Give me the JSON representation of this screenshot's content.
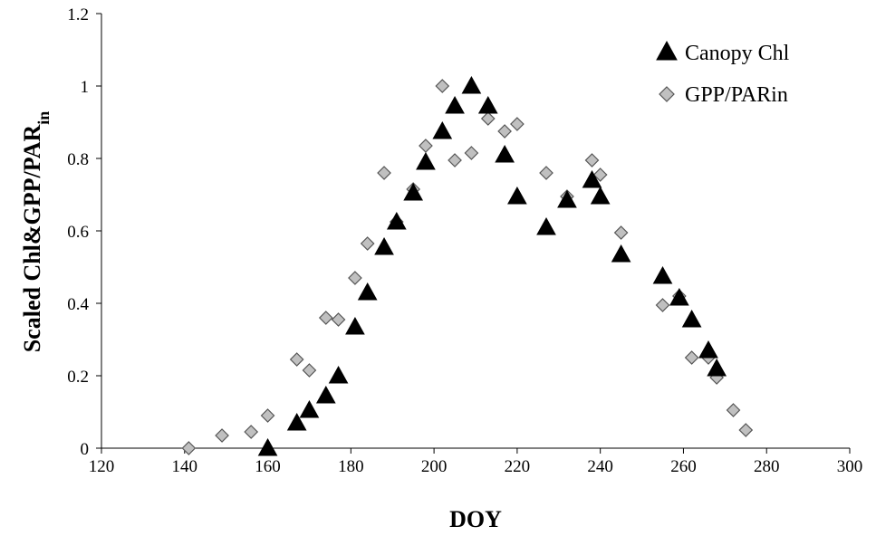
{
  "chart_data": {
    "type": "scatter",
    "title": "",
    "xlabel": "DOY",
    "ylabel": "Scaled Chl&GPP/PAR",
    "ylabel_sub": "in",
    "xlim": [
      120,
      300
    ],
    "ylim": [
      0,
      1.2
    ],
    "xticks": [
      "120",
      "140",
      "160",
      "180",
      "200",
      "220",
      "240",
      "260",
      "280",
      "300"
    ],
    "yticks": [
      "0",
      "0.2",
      "0.4",
      "0.6",
      "0.8",
      "1",
      "1.2"
    ],
    "grid": false,
    "legend_position": "top-right",
    "series": [
      {
        "name": "Canopy Chl",
        "marker": "triangle",
        "color": "#000000",
        "points": [
          [
            160,
            0.0
          ],
          [
            167,
            0.07
          ],
          [
            170,
            0.105
          ],
          [
            174,
            0.145
          ],
          [
            177,
            0.2
          ],
          [
            181,
            0.335
          ],
          [
            184,
            0.43
          ],
          [
            188,
            0.555
          ],
          [
            191,
            0.625
          ],
          [
            195,
            0.705
          ],
          [
            198,
            0.79
          ],
          [
            202,
            0.875
          ],
          [
            205,
            0.945
          ],
          [
            209,
            1.0
          ],
          [
            213,
            0.945
          ],
          [
            217,
            0.81
          ],
          [
            220,
            0.695
          ],
          [
            227,
            0.61
          ],
          [
            232,
            0.685
          ],
          [
            238,
            0.74
          ],
          [
            240,
            0.695
          ],
          [
            245,
            0.535
          ],
          [
            255,
            0.475
          ],
          [
            259,
            0.415
          ],
          [
            262,
            0.355
          ],
          [
            266,
            0.27
          ],
          [
            268,
            0.22
          ]
        ]
      },
      {
        "name": "GPP/PARin",
        "marker": "diamond",
        "color": "#c0c0c0",
        "points": [
          [
            141,
            0.0
          ],
          [
            149,
            0.035
          ],
          [
            156,
            0.045
          ],
          [
            160,
            0.09
          ],
          [
            167,
            0.245
          ],
          [
            170,
            0.215
          ],
          [
            174,
            0.36
          ],
          [
            177,
            0.355
          ],
          [
            181,
            0.47
          ],
          [
            184,
            0.565
          ],
          [
            188,
            0.76
          ],
          [
            191,
            0.625
          ],
          [
            195,
            0.715
          ],
          [
            198,
            0.835
          ],
          [
            202,
            1.0
          ],
          [
            205,
            0.795
          ],
          [
            209,
            0.815
          ],
          [
            213,
            0.91
          ],
          [
            217,
            0.875
          ],
          [
            220,
            0.895
          ],
          [
            227,
            0.76
          ],
          [
            232,
            0.695
          ],
          [
            238,
            0.795
          ],
          [
            240,
            0.755
          ],
          [
            245,
            0.595
          ],
          [
            255,
            0.395
          ],
          [
            259,
            0.42
          ],
          [
            262,
            0.25
          ],
          [
            266,
            0.25
          ],
          [
            268,
            0.195
          ],
          [
            272,
            0.105
          ],
          [
            275,
            0.05
          ]
        ]
      }
    ]
  }
}
